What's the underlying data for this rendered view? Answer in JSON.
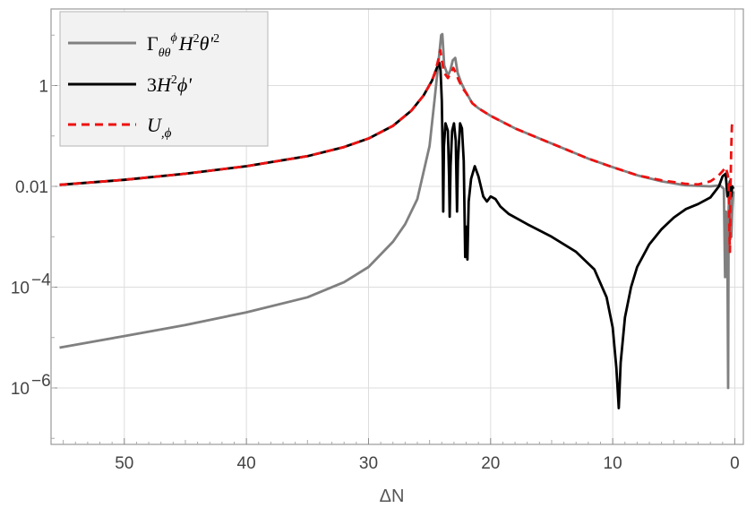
{
  "chart_data": {
    "type": "line",
    "title": "",
    "xlabel": "ΔN",
    "ylabel": "",
    "xlim": [
      56,
      -0.7
    ],
    "x_reversed": true,
    "y_scale": "log",
    "ylim_log10": [
      -7.12,
      1.52
    ],
    "grid": true,
    "legend_placement": "top-left",
    "x_ticks": [
      {
        "value": 50,
        "label": "50"
      },
      {
        "value": 40,
        "label": "40"
      },
      {
        "value": 30,
        "label": "30"
      },
      {
        "value": 20,
        "label": "20"
      },
      {
        "value": 10,
        "label": "10"
      },
      {
        "value": 0,
        "label": "0"
      }
    ],
    "y_ticks": [
      {
        "value_log10": 0,
        "label": "1",
        "exp": ""
      },
      {
        "value_log10": -2,
        "label": "0.01",
        "exp": ""
      },
      {
        "value_log10": -4,
        "label": "10",
        "exp": "−4"
      },
      {
        "value_log10": -6,
        "label": "10",
        "exp": "−6"
      }
    ],
    "series": [
      {
        "key": "gamma",
        "name_parts": [
          "Γ",
          "θθ",
          "ϕ",
          "H",
          "2",
          "θ'",
          "2"
        ],
        "color": "#808080",
        "dash": "",
        "points_log10": [
          [
            55.3,
            -5.2
          ],
          [
            50,
            -4.97
          ],
          [
            45,
            -4.75
          ],
          [
            40,
            -4.5
          ],
          [
            35,
            -4.2
          ],
          [
            32,
            -3.9
          ],
          [
            30,
            -3.6
          ],
          [
            28,
            -3.1
          ],
          [
            27,
            -2.75
          ],
          [
            26,
            -2.25
          ],
          [
            25,
            -1.2
          ],
          [
            24.6,
            -0.3
          ],
          [
            24.3,
            0.4
          ],
          [
            24.05,
            1.0
          ],
          [
            23.95,
            1.02
          ],
          [
            23.8,
            0.4
          ],
          [
            23.5,
            0.2
          ],
          [
            23.3,
            0.3
          ],
          [
            23.1,
            0.5
          ],
          [
            22.9,
            0.55
          ],
          [
            22.7,
            0.25
          ],
          [
            22.4,
            0.05
          ],
          [
            22.1,
            -0.1
          ],
          [
            21.5,
            -0.35
          ],
          [
            21,
            -0.45
          ],
          [
            20,
            -0.6
          ],
          [
            18,
            -0.85
          ],
          [
            16,
            -1.05
          ],
          [
            14,
            -1.25
          ],
          [
            12,
            -1.45
          ],
          [
            10,
            -1.62
          ],
          [
            8,
            -1.78
          ],
          [
            6,
            -1.9
          ],
          [
            4,
            -1.98
          ],
          [
            2,
            -2.0
          ],
          [
            1.2,
            -1.98
          ],
          [
            0.9,
            -2.05
          ],
          [
            0.8,
            -3.8
          ],
          [
            0.72,
            -2.5
          ],
          [
            0.62,
            -2.6
          ],
          [
            0.55,
            -6.0
          ],
          [
            0.5,
            -2.4
          ],
          [
            0.4,
            -2.2
          ],
          [
            0.35,
            -1.95
          ],
          [
            0.28,
            -3.0
          ],
          [
            0.22,
            -2.5
          ],
          [
            0.12,
            -2.1
          ]
        ]
      },
      {
        "key": "threeH2phi",
        "name_parts": [
          "3",
          "H",
          "2",
          "ϕ'"
        ],
        "color": "#000000",
        "dash": "",
        "points_log10": [
          [
            55.3,
            -1.97
          ],
          [
            50,
            -1.87
          ],
          [
            45,
            -1.75
          ],
          [
            40,
            -1.6
          ],
          [
            35,
            -1.4
          ],
          [
            32,
            -1.22
          ],
          [
            30,
            -1.05
          ],
          [
            28,
            -0.8
          ],
          [
            26.5,
            -0.5
          ],
          [
            25.5,
            -0.2
          ],
          [
            24.8,
            0.1
          ],
          [
            24.4,
            0.35
          ],
          [
            24.2,
            0.45
          ],
          [
            24.1,
            0.3
          ],
          [
            24.0,
            -0.3
          ],
          [
            23.92,
            -1.5
          ],
          [
            23.88,
            -2.5
          ],
          [
            23.82,
            -1.2
          ],
          [
            23.7,
            -0.75
          ],
          [
            23.5,
            -0.9
          ],
          [
            23.4,
            -1.8
          ],
          [
            23.35,
            -2.6
          ],
          [
            23.28,
            -1.6
          ],
          [
            23.15,
            -0.9
          ],
          [
            23.0,
            -0.75
          ],
          [
            22.85,
            -1.1
          ],
          [
            22.75,
            -2.5
          ],
          [
            22.68,
            -1.5
          ],
          [
            22.5,
            -0.75
          ],
          [
            22.35,
            -0.85
          ],
          [
            22.2,
            -1.5
          ],
          [
            22.08,
            -3.4
          ],
          [
            22.0,
            -2.8
          ],
          [
            21.9,
            -3.45
          ],
          [
            21.8,
            -2.3
          ],
          [
            21.6,
            -1.85
          ],
          [
            21.3,
            -1.6
          ],
          [
            21.0,
            -1.8
          ],
          [
            20.6,
            -2.2
          ],
          [
            20.3,
            -2.3
          ],
          [
            20.0,
            -2.2
          ],
          [
            19.6,
            -2.25
          ],
          [
            19.2,
            -2.4
          ],
          [
            18.5,
            -2.55
          ],
          [
            17,
            -2.75
          ],
          [
            15,
            -3.0
          ],
          [
            13,
            -3.3
          ],
          [
            11.5,
            -3.65
          ],
          [
            10.5,
            -4.2
          ],
          [
            10.0,
            -4.8
          ],
          [
            9.7,
            -5.6
          ],
          [
            9.5,
            -6.4
          ],
          [
            9.35,
            -5.5
          ],
          [
            9.0,
            -4.6
          ],
          [
            8.5,
            -4.0
          ],
          [
            8.0,
            -3.6
          ],
          [
            7.0,
            -3.15
          ],
          [
            6.0,
            -2.85
          ],
          [
            5.0,
            -2.62
          ],
          [
            4.0,
            -2.45
          ],
          [
            3.0,
            -2.35
          ],
          [
            2.0,
            -2.22
          ],
          [
            1.3,
            -2.0
          ],
          [
            1.0,
            -1.8
          ],
          [
            0.75,
            -1.75
          ],
          [
            0.6,
            -2.2
          ],
          [
            0.5,
            -2.1
          ],
          [
            0.4,
            -1.9
          ],
          [
            0.3,
            -2.2
          ],
          [
            0.2,
            -2.0
          ],
          [
            0.12,
            -2.05
          ]
        ]
      },
      {
        "key": "Uphi",
        "name_parts": [
          "U",
          ",ϕ"
        ],
        "color": "#ee1111",
        "dash": "9,6",
        "points_log10": [
          [
            55.3,
            -1.97
          ],
          [
            50,
            -1.87
          ],
          [
            45,
            -1.75
          ],
          [
            40,
            -1.6
          ],
          [
            35,
            -1.4
          ],
          [
            32,
            -1.22
          ],
          [
            30,
            -1.05
          ],
          [
            28,
            -0.8
          ],
          [
            26.5,
            -0.5
          ],
          [
            25.5,
            -0.2
          ],
          [
            24.8,
            0.1
          ],
          [
            24.5,
            0.3
          ],
          [
            24.3,
            0.5
          ],
          [
            24.12,
            0.7
          ],
          [
            24.0,
            0.5
          ],
          [
            23.8,
            0.25
          ],
          [
            23.5,
            0.15
          ],
          [
            23.25,
            0.25
          ],
          [
            23.05,
            0.35
          ],
          [
            22.85,
            0.25
          ],
          [
            22.6,
            0.1
          ],
          [
            22.3,
            -0.05
          ],
          [
            22.0,
            -0.15
          ],
          [
            21.5,
            -0.35
          ],
          [
            21,
            -0.45
          ],
          [
            20,
            -0.6
          ],
          [
            18,
            -0.85
          ],
          [
            16,
            -1.05
          ],
          [
            14,
            -1.25
          ],
          [
            12,
            -1.45
          ],
          [
            10,
            -1.62
          ],
          [
            8,
            -1.78
          ],
          [
            6,
            -1.88
          ],
          [
            4,
            -1.95
          ],
          [
            3,
            -1.96
          ],
          [
            2,
            -1.9
          ],
          [
            1.4,
            -1.8
          ],
          [
            1.0,
            -1.7
          ],
          [
            0.75,
            -1.62
          ],
          [
            0.6,
            -1.75
          ],
          [
            0.52,
            -1.85
          ],
          [
            0.45,
            -2.8
          ],
          [
            0.4,
            -3.3
          ],
          [
            0.36,
            -2.2
          ],
          [
            0.3,
            -1.3
          ],
          [
            0.24,
            -0.8
          ],
          [
            0.18,
            -0.7
          ]
        ]
      }
    ]
  }
}
